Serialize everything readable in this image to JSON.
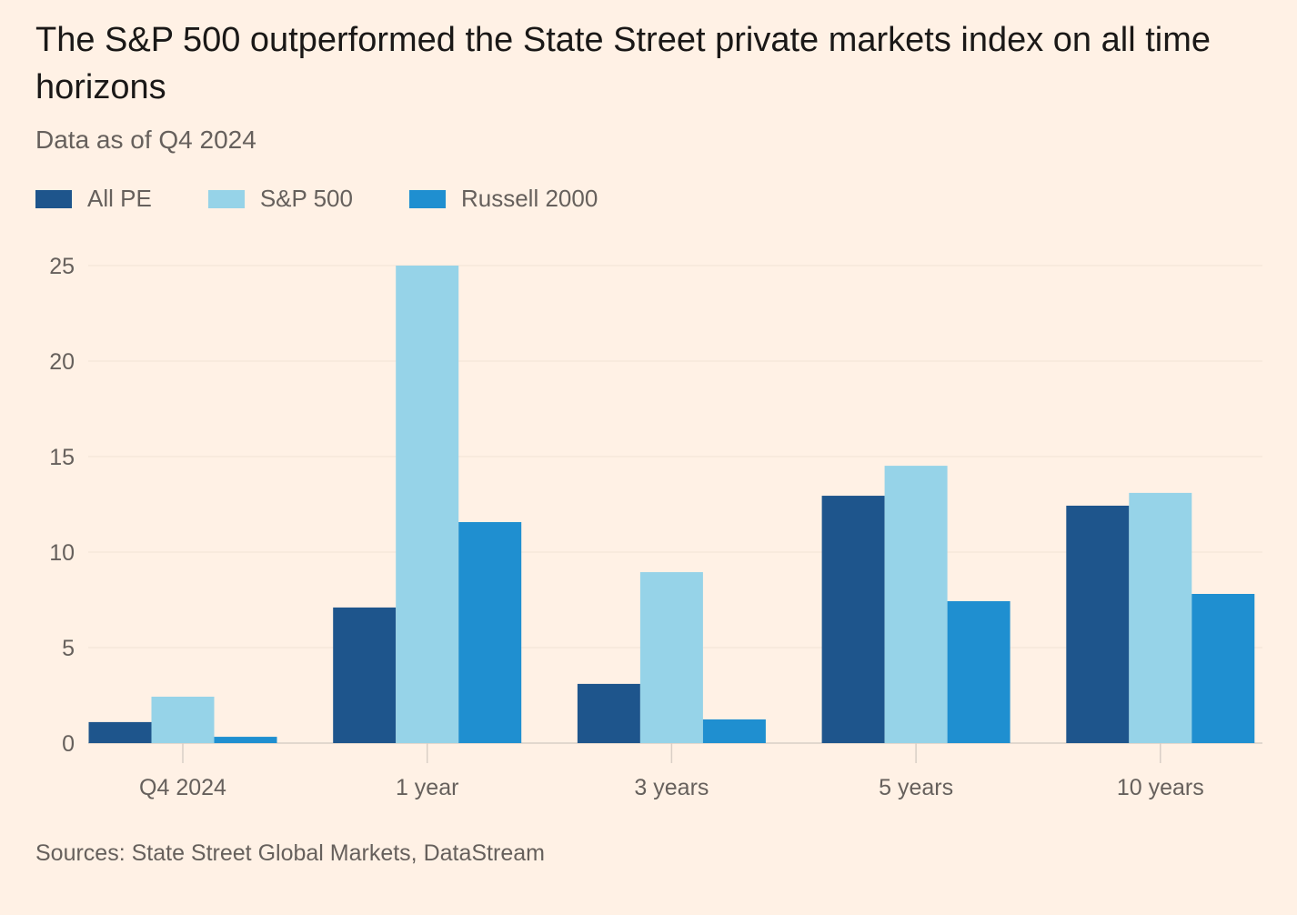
{
  "chart_data": {
    "type": "bar",
    "title": "The S&P 500 outperformed the State Street private markets index on all time horizons",
    "subtitle": "Data as of Q4 2024",
    "categories": [
      "Q4 2024",
      "1 year",
      "3 years",
      "5 years",
      "10 years"
    ],
    "series": [
      {
        "name": "All PE",
        "color": "#1e558c",
        "values": [
          1.1,
          7.1,
          3.1,
          12.95,
          12.43
        ]
      },
      {
        "name": "S&P 500",
        "color": "#96d3e8",
        "values": [
          2.43,
          25.0,
          8.95,
          14.52,
          13.1
        ]
      },
      {
        "name": "Russell 2000",
        "color": "#1f8fd0",
        "values": [
          0.33,
          11.57,
          1.24,
          7.43,
          7.81
        ]
      }
    ],
    "yticks": [
      "0",
      "5",
      "10",
      "15",
      "20",
      "25"
    ],
    "ylim": [
      0,
      25
    ],
    "xlabel": "",
    "ylabel": "",
    "grid": true,
    "legend_position": "top-left",
    "source": "Sources: State Street Global Markets, DataStream"
  }
}
